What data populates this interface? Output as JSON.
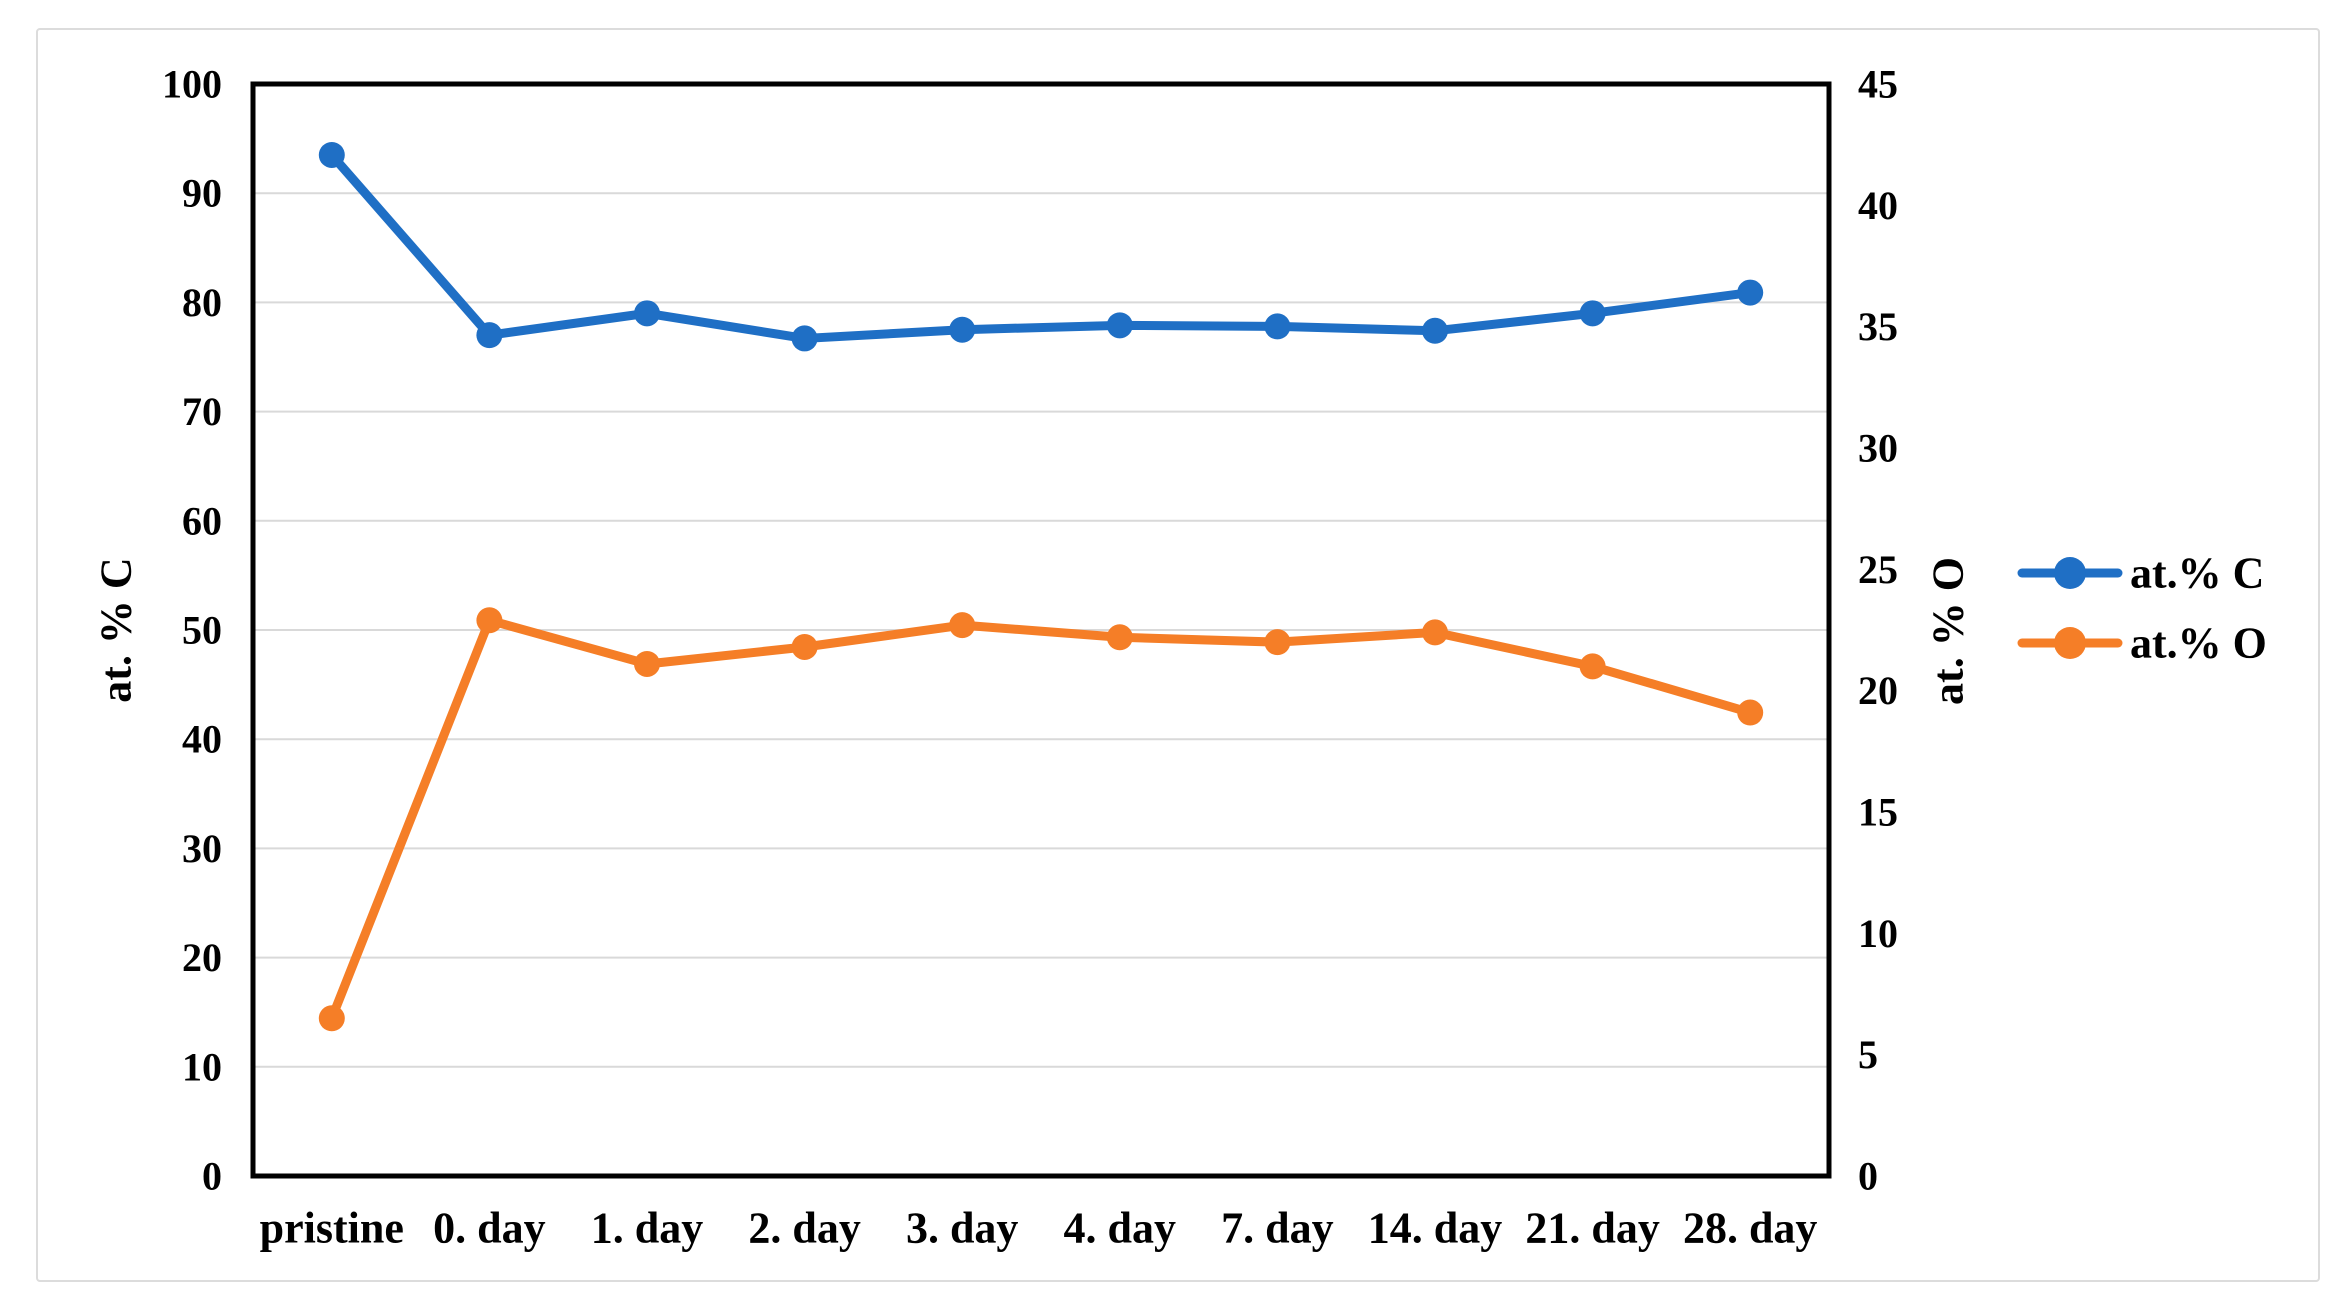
{
  "figure": {
    "background_color": "#ffffff",
    "frame_color": "#dcdcdc",
    "plot_border_color": "#000000",
    "gridline_color": "#d9d9d9"
  },
  "chart_data": {
    "type": "line",
    "title": "",
    "grid": "horizontal",
    "categories": [
      "pristine",
      "0. day",
      "1. day",
      "2. day",
      "3. day",
      "4. day",
      "7. day",
      "14. day",
      "21. day",
      "28. day"
    ],
    "series": [
      {
        "name": "at.% C",
        "axis": "left",
        "color": "#1f6fc5",
        "marker": "circle",
        "values": [
          93.5,
          77.0,
          79.0,
          76.7,
          77.5,
          77.9,
          77.8,
          77.4,
          79.0,
          80.9
        ]
      },
      {
        "name": "at.% O",
        "axis": "right",
        "color": "#f57e27",
        "marker": "circle",
        "values": [
          6.5,
          22.9,
          21.1,
          21.8,
          22.7,
          22.2,
          22.0,
          22.4,
          21.0,
          19.1
        ]
      }
    ],
    "left_axis": {
      "title": "at. % C",
      "min": 0,
      "max": 100,
      "step": 10,
      "tick_labels": [
        "0",
        "10",
        "20",
        "30",
        "40",
        "50",
        "60",
        "70",
        "80",
        "90",
        "100"
      ]
    },
    "right_axis": {
      "title": "at. % O",
      "min": 0,
      "max": 45,
      "step": 5,
      "tick_labels": [
        "0",
        "5",
        "10",
        "15",
        "20",
        "25",
        "30",
        "35",
        "40",
        "45"
      ]
    },
    "legend": {
      "position": "right",
      "entries": [
        "at.% C",
        "at.% O"
      ]
    }
  }
}
